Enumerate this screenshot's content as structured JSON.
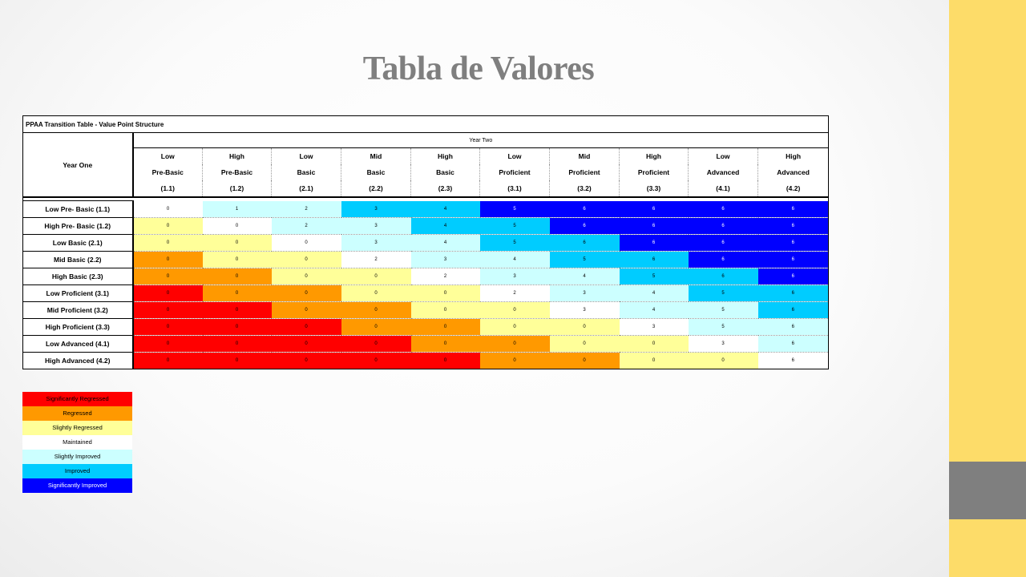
{
  "slide": {
    "title": "Tabla de Valores"
  },
  "table": {
    "title": "PPAA Transition Table  - Value Point Structure",
    "year_one": "Year One",
    "year_two": "Year Two",
    "columns": [
      {
        "line1": "Low",
        "line2": "Pre-Basic",
        "line3": "(1.1)"
      },
      {
        "line1": "High",
        "line2": "Pre-Basic",
        "line3": "(1.2)"
      },
      {
        "line1": "Low",
        "line2": "Basic",
        "line3": "(2.1)"
      },
      {
        "line1": "Mid",
        "line2": "Basic",
        "line3": "(2.2)"
      },
      {
        "line1": "High",
        "line2": "Basic",
        "line3": "(2.3)"
      },
      {
        "line1": "Low",
        "line2": "Proficient",
        "line3": "(3.1)"
      },
      {
        "line1": "Mid",
        "line2": "Proficient",
        "line3": "(3.2)"
      },
      {
        "line1": "High",
        "line2": "Proficient",
        "line3": "(3.3)"
      },
      {
        "line1": "Low",
        "line2": "Advanced",
        "line3": "(4.1)"
      },
      {
        "line1": "High",
        "line2": "Advanced",
        "line3": "(4.2)"
      }
    ],
    "rows": [
      {
        "label": "Low Pre- Basic (1.1)",
        "values": [
          "0",
          "1",
          "2",
          "3",
          "4",
          "5",
          "6",
          "6",
          "6",
          "6"
        ],
        "levels": [
          3,
          4,
          4,
          5,
          5,
          6,
          6,
          6,
          6,
          6
        ]
      },
      {
        "label": "High Pre- Basic (1.2)",
        "values": [
          "0",
          "0",
          "2",
          "3",
          "4",
          "5",
          "6",
          "6",
          "6",
          "6"
        ],
        "levels": [
          2,
          3,
          4,
          4,
          5,
          5,
          6,
          6,
          6,
          6
        ]
      },
      {
        "label": "Low Basic (2.1)",
        "values": [
          "0",
          "0",
          "0",
          "3",
          "4",
          "5",
          "6",
          "6",
          "6",
          "6"
        ],
        "levels": [
          2,
          2,
          3,
          4,
          4,
          5,
          5,
          6,
          6,
          6
        ]
      },
      {
        "label": "Mid Basic (2.2)",
        "values": [
          "0",
          "0",
          "0",
          "2",
          "3",
          "4",
          "5",
          "6",
          "6",
          "6"
        ],
        "levels": [
          1,
          2,
          2,
          3,
          4,
          4,
          5,
          5,
          6,
          6
        ]
      },
      {
        "label": "High Basic (2.3)",
        "values": [
          "0",
          "0",
          "0",
          "0",
          "2",
          "3",
          "4",
          "5",
          "6",
          "6"
        ],
        "levels": [
          1,
          1,
          2,
          2,
          3,
          4,
          4,
          5,
          5,
          6
        ]
      },
      {
        "label": "Low Proficient (3.1)",
        "values": [
          "0",
          "0",
          "0",
          "0",
          "0",
          "2",
          "3",
          "4",
          "5",
          "6"
        ],
        "levels": [
          0,
          1,
          1,
          2,
          2,
          3,
          4,
          4,
          5,
          5
        ]
      },
      {
        "label": "Mid Proficient (3.2)",
        "values": [
          "0",
          "0",
          "0",
          "0",
          "0",
          "0",
          "3",
          "4",
          "5",
          "6"
        ],
        "levels": [
          0,
          0,
          1,
          1,
          2,
          2,
          3,
          4,
          4,
          5
        ]
      },
      {
        "label": "High Proficient (3.3)",
        "values": [
          "0",
          "0",
          "0",
          "0",
          "0",
          "0",
          "0",
          "3",
          "5",
          "6"
        ],
        "levels": [
          0,
          0,
          0,
          1,
          1,
          2,
          2,
          3,
          4,
          4
        ]
      },
      {
        "label": "Low Advanced  (4.1)",
        "values": [
          "0",
          "0",
          "0",
          "0",
          "0",
          "0",
          "0",
          "0",
          "3",
          "6"
        ],
        "levels": [
          0,
          0,
          0,
          0,
          1,
          1,
          2,
          2,
          3,
          4
        ]
      },
      {
        "label": "High Advanced (4.2)",
        "values": [
          "0",
          "0",
          "0",
          "0",
          "0",
          "0",
          "0",
          "0",
          "0",
          "6"
        ],
        "levels": [
          0,
          0,
          0,
          0,
          0,
          1,
          1,
          2,
          2,
          3
        ]
      }
    ]
  },
  "legend": [
    {
      "label": "Significantly Regressed",
      "color": "#ff0000"
    },
    {
      "label": "Regressed",
      "color": "#ff9900"
    },
    {
      "label": "Slightly Regressed",
      "color": "#ffff99"
    },
    {
      "label": "Maintained",
      "color": "#ffffff"
    },
    {
      "label": "Slightly Improved",
      "color": "#ccffff"
    },
    {
      "label": "Improved",
      "color": "#00ccff"
    },
    {
      "label": "Significantly Improved",
      "color": "#0000ff"
    }
  ]
}
